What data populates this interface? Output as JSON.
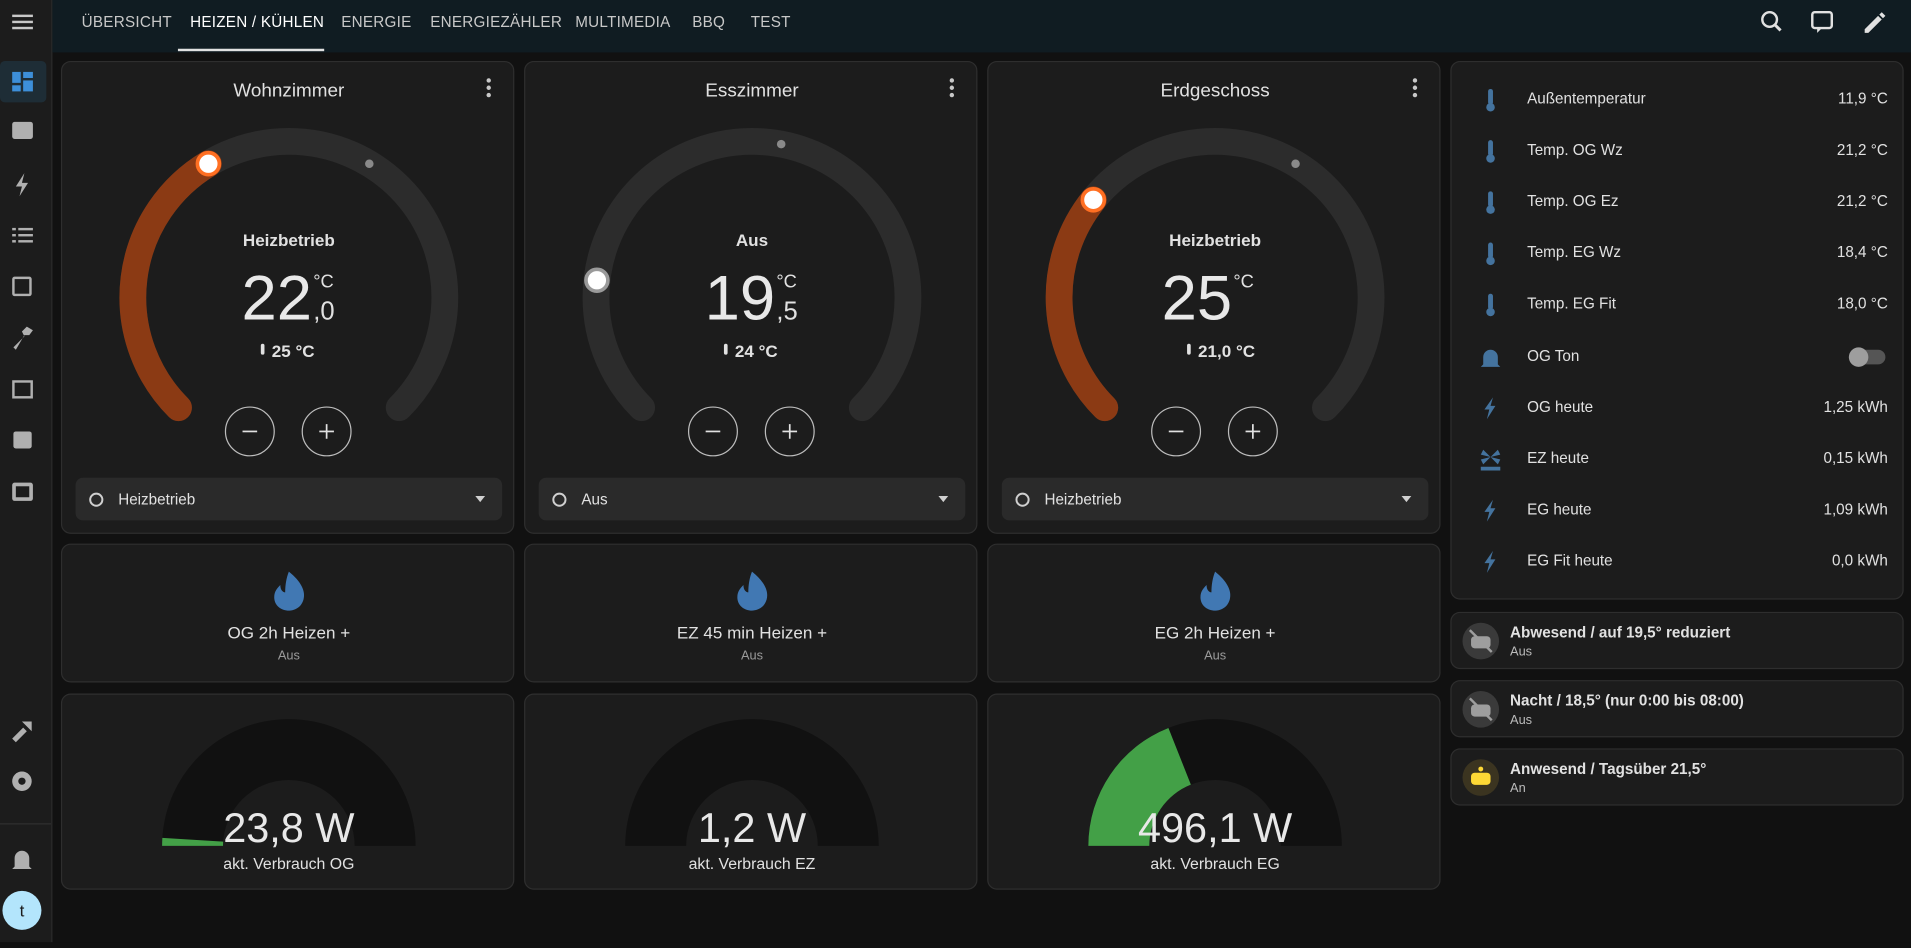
{
  "nav": {
    "tabs": [
      "ÜBERSICHT",
      "HEIZEN / KÜHLEN",
      "ENERGIE",
      "ENERGIEZÄHLER",
      "MULTIMEDIA",
      "BBQ",
      "TEST"
    ]
  },
  "avatar": "t",
  "thermostats": [
    {
      "name": "Wohnzimmer",
      "mode": "Heizbetrieb",
      "target": "22",
      "decimal": ",0",
      "unit": "°C",
      "current": "25 °C",
      "select": "Heizbetrieb"
    },
    {
      "name": "Esszimmer",
      "mode": "Aus",
      "target": "19",
      "decimal": ",5",
      "unit": "°C",
      "current": "24 °C",
      "select": "Aus"
    },
    {
      "name": "Erdgeschoss",
      "mode": "Heizbetrieb",
      "target": "25",
      "unit": "°C",
      "current": "21,0 °C",
      "select": "Heizbetrieb"
    }
  ],
  "buttons": [
    {
      "name": "OG 2h Heizen +",
      "state": "Aus"
    },
    {
      "name": "EZ 45 min Heizen +",
      "state": "Aus"
    },
    {
      "name": "EG 2h Heizen +",
      "state": "Aus"
    }
  ],
  "gauges": [
    {
      "value": "23,8 W",
      "label": "akt. Verbrauch OG"
    },
    {
      "value": "1,2 W",
      "label": "akt. Verbrauch EZ"
    },
    {
      "value": "496,1 W",
      "label": "akt. Verbrauch EG"
    }
  ],
  "entities": [
    {
      "name": "Außentemperatur",
      "value": "11,9 °C"
    },
    {
      "name": "Temp. OG Wz",
      "value": "21,2 °C"
    },
    {
      "name": "Temp. OG Ez",
      "value": "21,2 °C"
    },
    {
      "name": "Temp. EG Wz",
      "value": "18,4 °C"
    },
    {
      "name": "Temp. EG Fit",
      "value": "18,0 °C"
    },
    {
      "name": "OG Ton"
    },
    {
      "name": "OG heute",
      "value": "1,25 kWh"
    },
    {
      "name": "EZ heute",
      "value": "0,15 kWh"
    },
    {
      "name": "EG heute",
      "value": "1,09 kWh"
    },
    {
      "name": "EG Fit heute",
      "value": "0,0 kWh"
    }
  ],
  "automations": [
    {
      "name": "Abwesend / auf 19,5° reduziert",
      "state": "Aus"
    },
    {
      "name": "Nacht / 18,5° (nur 0:00 bis 08:00)",
      "state": "Aus"
    },
    {
      "name": "Anwesend / Tagsüber 21,5°",
      "state": "An"
    }
  ]
}
